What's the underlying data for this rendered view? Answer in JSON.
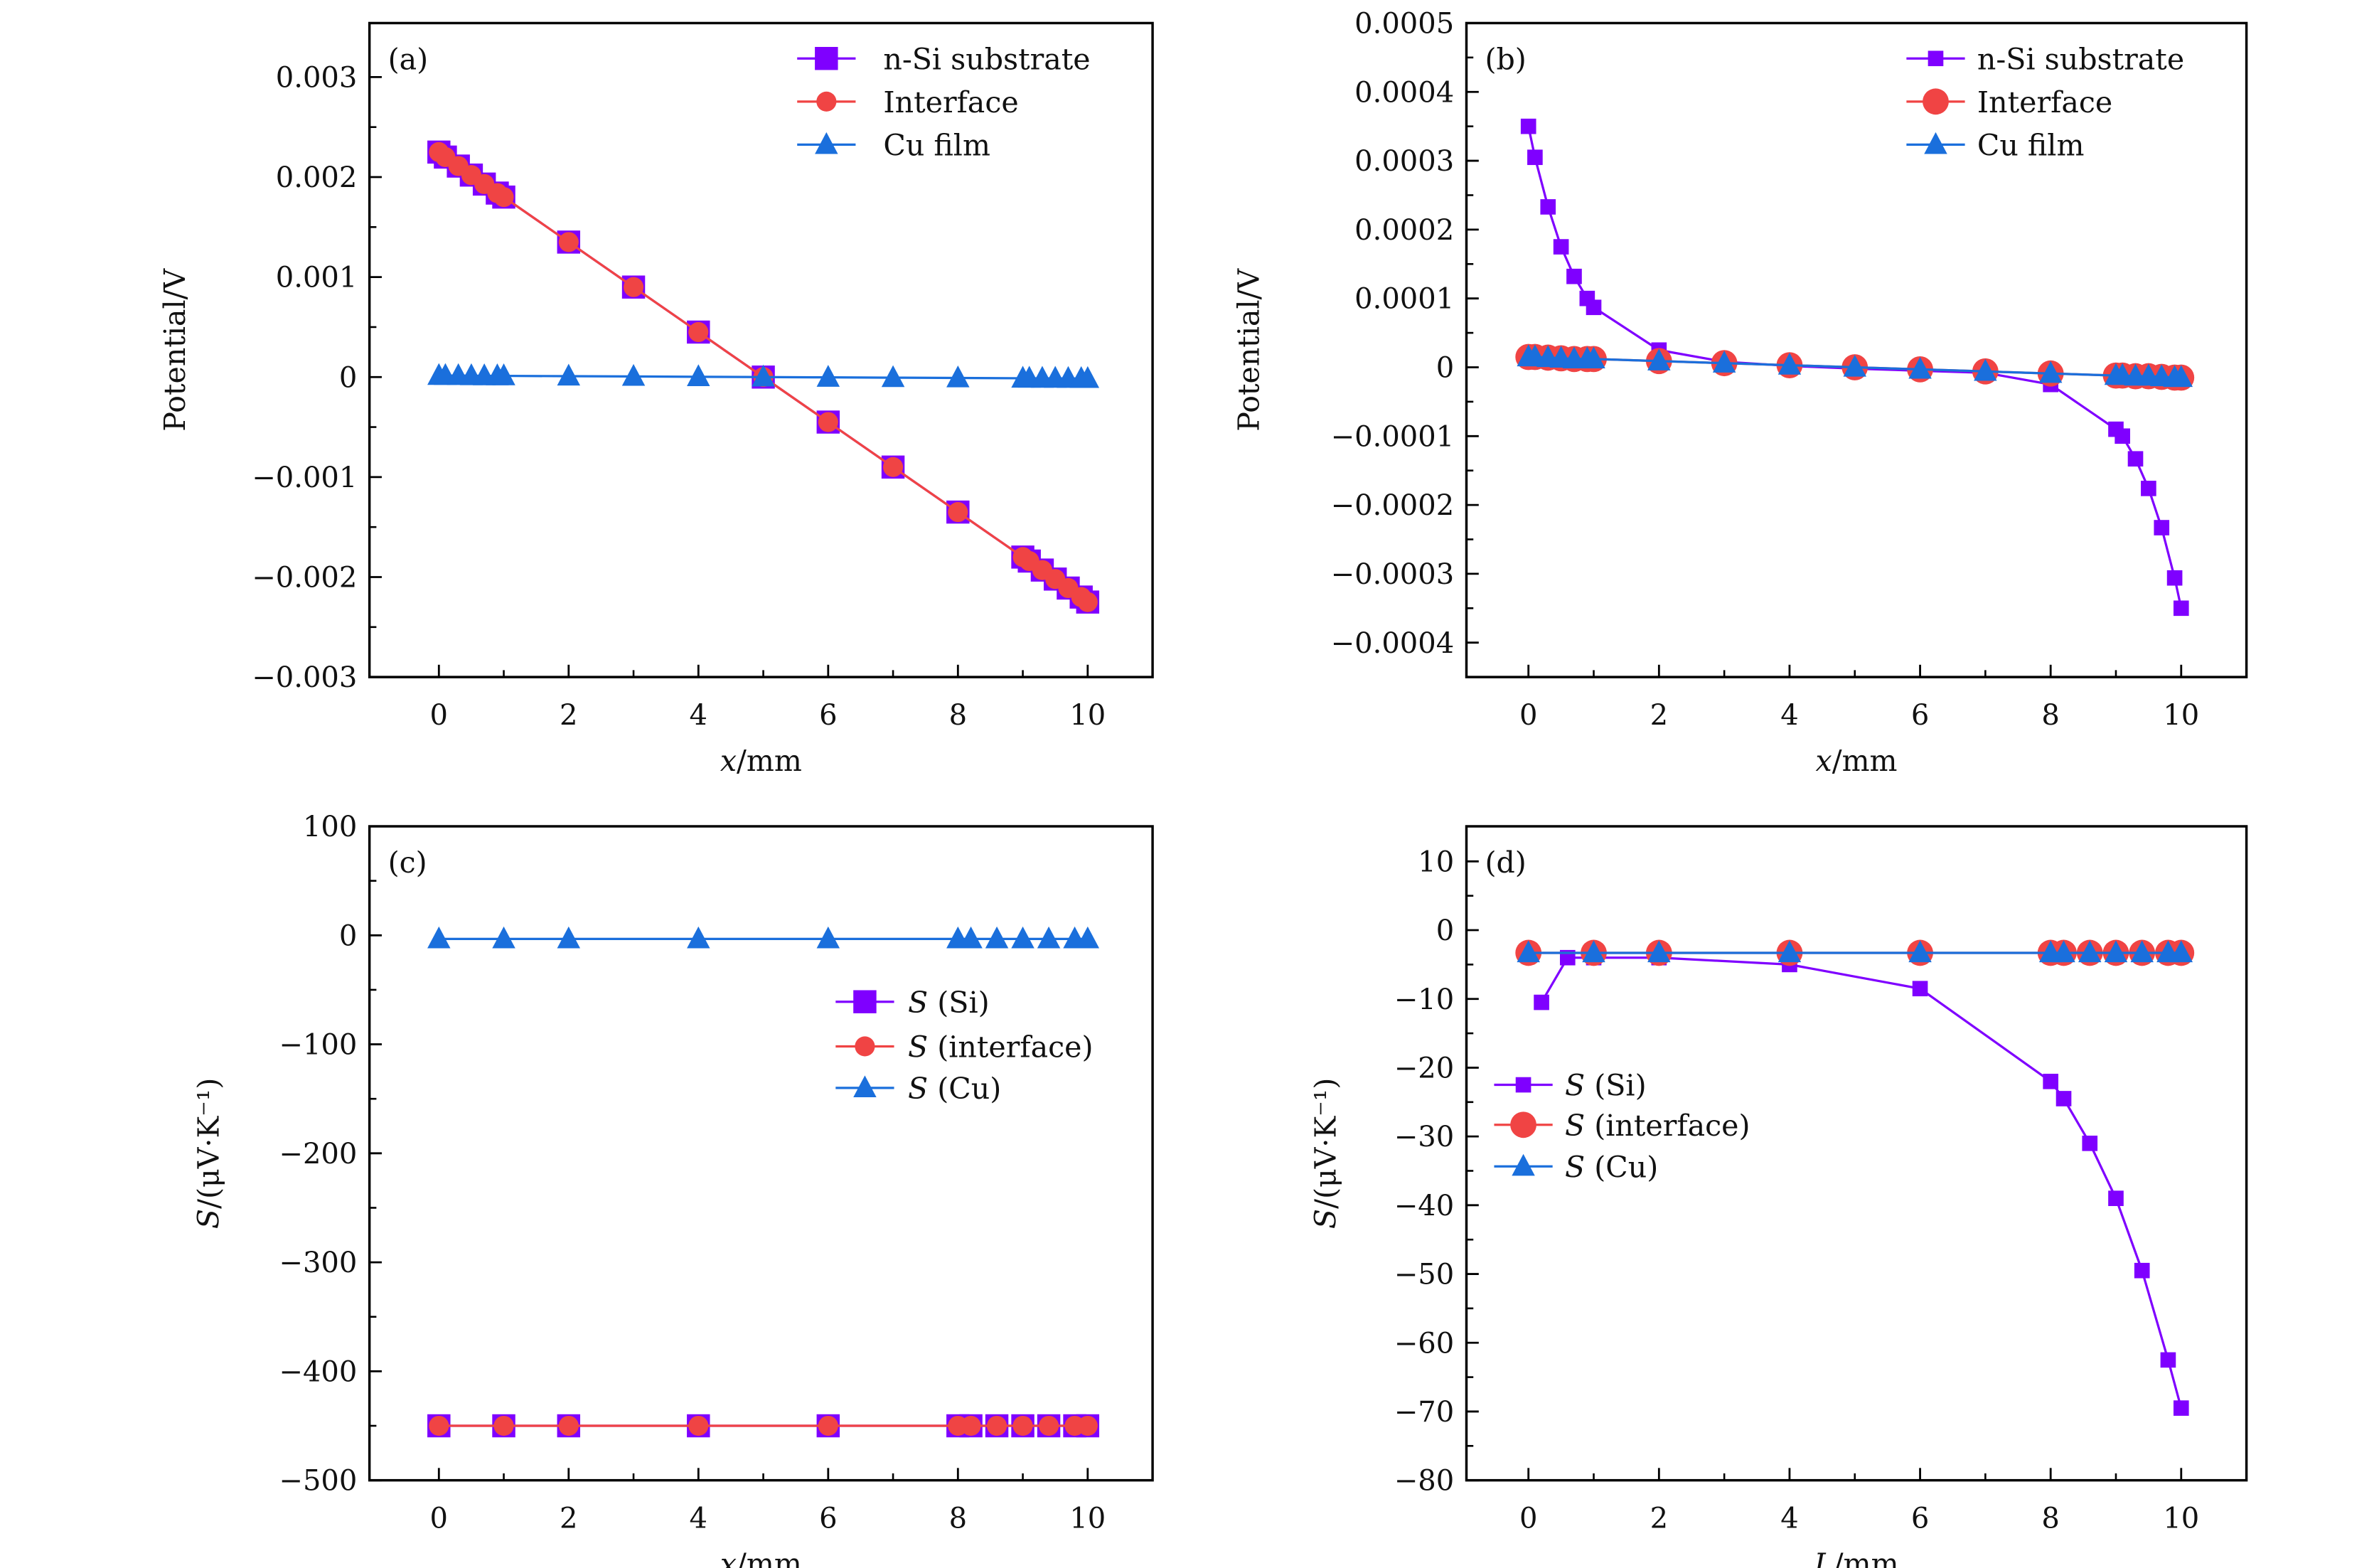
{
  "colors": {
    "si": "#7f00ff",
    "interface": "#f04444",
    "cu": "#1a6fdc",
    "axis": "#000000"
  },
  "chart_data": [
    {
      "panel": "(a)",
      "type": "line",
      "xlabel": "x/mm",
      "ylabel": "Potential/V",
      "xlim": [
        -1.07,
        11.0
      ],
      "ylim": [
        -0.003,
        0.00354
      ],
      "xticks": [
        0,
        2,
        4,
        6,
        8,
        10
      ],
      "xticklabels": [
        "0",
        "2",
        "4",
        "6",
        "8",
        "10"
      ],
      "yticks": [
        0.003,
        0.002,
        0.001,
        0,
        -0.001,
        -0.002,
        -0.003
      ],
      "yticklabels": [
        "0.003",
        "0.002",
        "0.001",
        "0",
        "−0.001",
        "−0.002",
        "−0.003"
      ],
      "legend": "top-right",
      "series": [
        {
          "name": "n-Si substrate",
          "marker": "square",
          "color": "#7f00ff",
          "x": [
            0,
            0.1,
            0.3,
            0.5,
            0.7,
            0.9,
            1,
            2,
            3,
            4,
            5,
            6,
            7,
            8,
            9,
            9.1,
            9.3,
            9.5,
            9.7,
            9.9,
            10
          ],
          "y": [
            0.00225,
            0.0022,
            0.00211,
            0.00202,
            0.00193,
            0.00184,
            0.0018,
            0.00135,
            0.0009,
            0.00045,
            0,
            -0.00045,
            -0.0009,
            -0.00135,
            -0.0018,
            -0.00184,
            -0.00193,
            -0.00202,
            -0.00211,
            -0.0022,
            -0.00225
          ]
        },
        {
          "name": "Interface",
          "marker": "circle",
          "color": "#f04444",
          "x": [
            0,
            0.1,
            0.3,
            0.5,
            0.7,
            0.9,
            1,
            2,
            3,
            4,
            5,
            6,
            7,
            8,
            9,
            9.1,
            9.3,
            9.5,
            9.7,
            9.9,
            10
          ],
          "y": [
            0.00225,
            0.0022,
            0.00211,
            0.00202,
            0.00193,
            0.00184,
            0.0018,
            0.00135,
            0.0009,
            0.00045,
            0,
            -0.00045,
            -0.0009,
            -0.00135,
            -0.0018,
            -0.00184,
            -0.00193,
            -0.00202,
            -0.00211,
            -0.0022,
            -0.00225
          ]
        },
        {
          "name": "Cu film",
          "marker": "triangle",
          "color": "#1a6fdc",
          "x": [
            0,
            0.1,
            0.3,
            0.5,
            0.7,
            0.9,
            1,
            2,
            3,
            4,
            5,
            6,
            7,
            8,
            9,
            9.1,
            9.3,
            9.5,
            9.7,
            9.9,
            10
          ],
          "y": [
            1.5e-05,
            1.5e-05,
            1.4e-05,
            1.3e-05,
            1.2e-05,
            1.2e-05,
            1.2e-05,
            9e-06,
            6e-06,
            3e-06,
            0,
            -3e-06,
            -6e-06,
            -9e-06,
            -1.2e-05,
            -1.2e-05,
            -1.3e-05,
            -1.3e-05,
            -1.4e-05,
            -1.5e-05,
            -1.5e-05
          ]
        }
      ]
    },
    {
      "panel": "(b)",
      "type": "line",
      "xlabel": "x/mm",
      "ylabel": "Potential/V",
      "xlim": [
        -0.95,
        11.0
      ],
      "ylim": [
        -0.00045,
        0.0005
      ],
      "xticks": [
        0,
        2,
        4,
        6,
        8,
        10
      ],
      "xticklabels": [
        "0",
        "2",
        "4",
        "6",
        "8",
        "10"
      ],
      "yticks": [
        0.0005,
        0.0004,
        0.0003,
        0.0002,
        0.0001,
        0,
        -0.0001,
        -0.0002,
        -0.0003,
        -0.0004
      ],
      "yticklabels": [
        "0.0005",
        "0.0004",
        "0.0003",
        "0.0002",
        "0.0001",
        "0",
        "−0.0001",
        "−0.0002",
        "−0.0003",
        "−0.0004"
      ],
      "legend": "top-right",
      "series": [
        {
          "name": "n-Si substrate",
          "marker": "square",
          "color": "#7f00ff",
          "x": [
            0,
            0.1,
            0.3,
            0.5,
            0.7,
            0.9,
            1,
            2,
            3,
            4,
            5,
            6,
            7,
            8,
            9,
            9.1,
            9.3,
            9.5,
            9.7,
            9.9,
            10
          ],
          "y": [
            0.00035,
            0.000305,
            0.000233,
            0.000175,
            0.000132,
            0.0001,
            8.7e-05,
            2.5e-05,
            8e-06,
            2e-06,
            -2e-06,
            -5e-06,
            -8e-06,
            -2.5e-05,
            -9e-05,
            -0.0001,
            -0.000133,
            -0.000176,
            -0.000233,
            -0.000306,
            -0.00035
          ]
        },
        {
          "name": "Interface",
          "marker": "circle",
          "color": "#f04444",
          "x": [
            0,
            0.1,
            0.3,
            0.5,
            0.7,
            0.9,
            1,
            2,
            3,
            4,
            5,
            6,
            7,
            8,
            9,
            9.1,
            9.3,
            9.5,
            9.7,
            9.9,
            10
          ],
          "y": [
            1.5e-05,
            1.5e-05,
            1.4e-05,
            1.3e-05,
            1.2e-05,
            1.2e-05,
            1.2e-05,
            9e-06,
            6e-06,
            3e-06,
            0,
            -3e-06,
            -6e-06,
            -9e-06,
            -1.2e-05,
            -1.2e-05,
            -1.3e-05,
            -1.3e-05,
            -1.4e-05,
            -1.5e-05,
            -1.5e-05
          ]
        },
        {
          "name": "Cu film",
          "marker": "triangle",
          "color": "#1a6fdc",
          "x": [
            0,
            0.1,
            0.3,
            0.5,
            0.7,
            0.9,
            1,
            2,
            3,
            4,
            5,
            6,
            7,
            8,
            9,
            9.1,
            9.3,
            9.5,
            9.7,
            9.9,
            10
          ],
          "y": [
            1.5e-05,
            1.5e-05,
            1.4e-05,
            1.3e-05,
            1.2e-05,
            1.2e-05,
            1.2e-05,
            9e-06,
            6e-06,
            3e-06,
            0,
            -3e-06,
            -6e-06,
            -9e-06,
            -1.2e-05,
            -1.2e-05,
            -1.3e-05,
            -1.3e-05,
            -1.4e-05,
            -1.5e-05,
            -1.5e-05
          ]
        }
      ]
    },
    {
      "panel": "(c)",
      "type": "line",
      "xlabel": "x/mm",
      "ylabel": "S/(μV·K⁻¹)",
      "xlim": [
        -1.07,
        11.0
      ],
      "ylim": [
        -500,
        100
      ],
      "xticks": [
        0,
        2,
        4,
        6,
        8,
        10
      ],
      "xticklabels": [
        "0",
        "2",
        "4",
        "6",
        "8",
        "10"
      ],
      "yticks": [
        100,
        0,
        -100,
        -200,
        -300,
        -400,
        -500
      ],
      "yticklabels": [
        "100",
        "0",
        "−100",
        "−200",
        "−300",
        "−400",
        "−500"
      ],
      "legend": "middle-right",
      "series": [
        {
          "name": "S (Si)",
          "marker": "square",
          "color": "#7f00ff",
          "x": [
            0,
            1,
            2,
            4,
            6,
            8,
            8.2,
            8.6,
            9,
            9.4,
            9.8,
            10
          ],
          "y": [
            -450,
            -450,
            -450,
            -450,
            -450,
            -450,
            -450,
            -450,
            -450,
            -450,
            -450,
            -450
          ]
        },
        {
          "name": "S (interface)",
          "marker": "circle",
          "color": "#f04444",
          "x": [
            0,
            1,
            2,
            4,
            6,
            8,
            8.2,
            8.6,
            9,
            9.4,
            9.8,
            10
          ],
          "y": [
            -450,
            -450,
            -450,
            -450,
            -450,
            -450,
            -450,
            -450,
            -450,
            -450,
            -450,
            -450
          ]
        },
        {
          "name": "S (Cu)",
          "marker": "triangle",
          "color": "#1a6fdc",
          "x": [
            0,
            1,
            2,
            4,
            6,
            8,
            8.2,
            8.6,
            9,
            9.4,
            9.8,
            10
          ],
          "y": [
            -3.3,
            -3.3,
            -3.3,
            -3.3,
            -3.3,
            -3.3,
            -3.3,
            -3.3,
            -3.3,
            -3.3,
            -3.3,
            -3.3
          ]
        }
      ]
    },
    {
      "panel": "(d)",
      "type": "line",
      "xlabel": "L/mm",
      "ylabel": "S/(μV·K⁻¹)",
      "xlim": [
        -0.95,
        11.0
      ],
      "ylim": [
        -80,
        15.1
      ],
      "xticks": [
        0,
        2,
        4,
        6,
        8,
        10
      ],
      "xticklabels": [
        "0",
        "2",
        "4",
        "6",
        "8",
        "10"
      ],
      "yticks": [
        10,
        0,
        -10,
        -20,
        -30,
        -40,
        -50,
        -60,
        -70,
        -80
      ],
      "yticklabels": [
        "10",
        "0",
        "−10",
        "−20",
        "−30",
        "−40",
        "−50",
        "−60",
        "−70",
        "−80"
      ],
      "legend": "center-left",
      "series": [
        {
          "name": "S (Si)",
          "marker": "square",
          "color": "#7f00ff",
          "x": [
            0.2,
            0.6,
            1,
            2,
            4,
            6,
            8,
            8.2,
            8.6,
            9,
            9.4,
            9.8,
            10
          ],
          "y": [
            -10.5,
            -4,
            -4,
            -4,
            -5,
            -8.5,
            -22,
            -24.5,
            -31,
            -39,
            -49.5,
            -62.5,
            -69.5
          ]
        },
        {
          "name": "S (interface)",
          "marker": "circle",
          "color": "#f04444",
          "x": [
            0,
            1,
            2,
            4,
            6,
            8,
            8.2,
            8.6,
            9,
            9.4,
            9.8,
            10
          ],
          "y": [
            -3.3,
            -3.3,
            -3.3,
            -3.3,
            -3.3,
            -3.3,
            -3.3,
            -3.3,
            -3.3,
            -3.3,
            -3.3,
            -3.3
          ]
        },
        {
          "name": "S (Cu)",
          "marker": "triangle",
          "color": "#1a6fdc",
          "x": [
            0,
            1,
            2,
            4,
            6,
            8,
            8.2,
            8.6,
            9,
            9.4,
            9.8,
            10
          ],
          "y": [
            -3.3,
            -3.3,
            -3.3,
            -3.3,
            -3.3,
            -3.3,
            -3.3,
            -3.3,
            -3.3,
            -3.3,
            -3.3,
            -3.3
          ]
        }
      ]
    }
  ]
}
